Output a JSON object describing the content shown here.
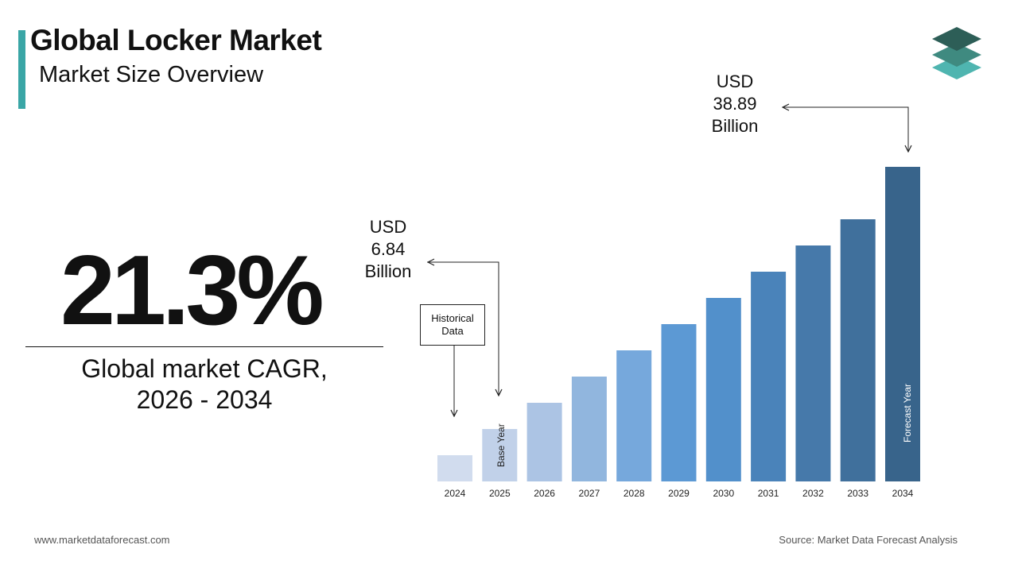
{
  "header": {
    "title": "Global Locker Market",
    "subtitle": "Market Size Overview"
  },
  "highlight": {
    "cagr_value": "21.3%",
    "cagr_label": "Global market CAGR,\n2026 - 2034"
  },
  "callouts": {
    "base_value": "USD\n6.84\nBillion",
    "forecast_value": "USD\n38.89\nBillion",
    "historical_label": "Historical Data",
    "base_year_label": "Base Year",
    "forecast_year_label": "Forecast Year"
  },
  "footer": {
    "website": "www.marketdataforecast.com",
    "source": "Source: Market Data Forecast Analysis"
  },
  "colors": {
    "accent": "#3aa6a6",
    "logo_top": "#2d5e57",
    "logo_mid": "#3f8a80",
    "logo_bottom": "#4fb5b0"
  },
  "chart_data": {
    "type": "bar",
    "categories": [
      "2024",
      "2025",
      "2026",
      "2027",
      "2028",
      "2029",
      "2030",
      "2031",
      "2032",
      "2033",
      "2034"
    ],
    "values": [
      null,
      6.84,
      null,
      null,
      null,
      null,
      null,
      null,
      null,
      null,
      38.89
    ],
    "relative_heights": [
      1,
      2,
      3,
      4,
      5,
      6,
      7,
      8,
      9,
      10,
      12
    ],
    "bar_colors": [
      "#d1dcee",
      "#c1d1e9",
      "#acc4e4",
      "#91b6de",
      "#76a8dc",
      "#5c99d4",
      "#5290cb",
      "#4a83ba",
      "#4679aa",
      "#40709c",
      "#38648b"
    ],
    "unit": "USD Billion"
  }
}
